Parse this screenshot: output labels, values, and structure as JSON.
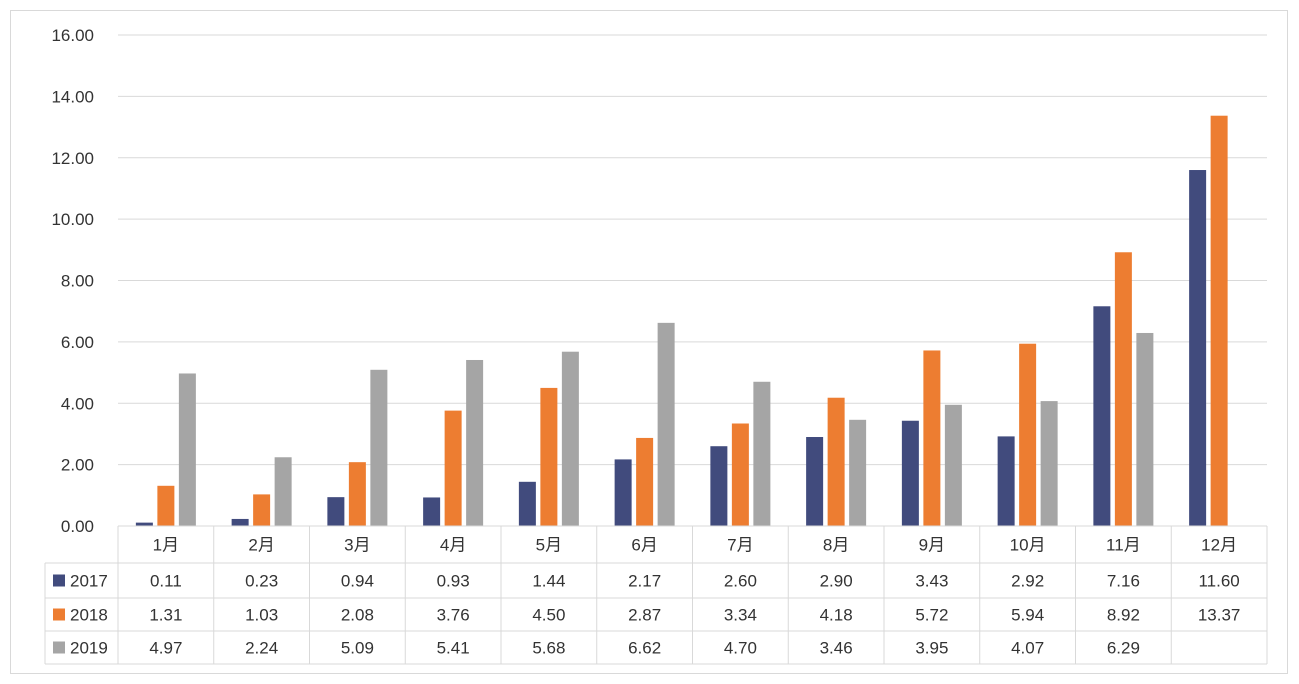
{
  "chart_data": {
    "type": "bar",
    "categories": [
      "1月",
      "2月",
      "3月",
      "4月",
      "5月",
      "6月",
      "7月",
      "8月",
      "9月",
      "10月",
      "11月",
      "12月"
    ],
    "series": [
      {
        "name": "2017",
        "color": "#414b7d",
        "values": [
          0.11,
          0.23,
          0.94,
          0.93,
          1.44,
          2.17,
          2.6,
          2.9,
          3.43,
          2.92,
          7.16,
          11.6
        ],
        "labels": [
          "0.11",
          "0.23",
          "0.94",
          "0.93",
          "1.44",
          "2.17",
          "2.60",
          "2.90",
          "3.43",
          "2.92",
          "7.16",
          "11.60"
        ]
      },
      {
        "name": "2018",
        "color": "#ed7d31",
        "values": [
          1.31,
          1.03,
          2.08,
          3.76,
          4.5,
          2.87,
          3.34,
          4.18,
          5.72,
          5.94,
          8.92,
          13.37
        ],
        "labels": [
          "1.31",
          "1.03",
          "2.08",
          "3.76",
          "4.50",
          "2.87",
          "3.34",
          "4.18",
          "5.72",
          "5.94",
          "8.92",
          "13.37"
        ]
      },
      {
        "name": "2019",
        "color": "#a5a5a5",
        "values": [
          4.97,
          2.24,
          5.09,
          5.41,
          5.68,
          6.62,
          4.7,
          3.46,
          3.95,
          4.07,
          6.29,
          null
        ],
        "labels": [
          "4.97",
          "2.24",
          "5.09",
          "5.41",
          "5.68",
          "6.62",
          "4.70",
          "3.46",
          "3.95",
          "4.07",
          "6.29",
          ""
        ]
      }
    ],
    "yticks": [
      "0.00",
      "2.00",
      "4.00",
      "6.00",
      "8.00",
      "10.00",
      "12.00",
      "14.00",
      "16.00"
    ],
    "ylim": [
      0,
      16
    ],
    "grid": true,
    "legend": "data-table"
  }
}
